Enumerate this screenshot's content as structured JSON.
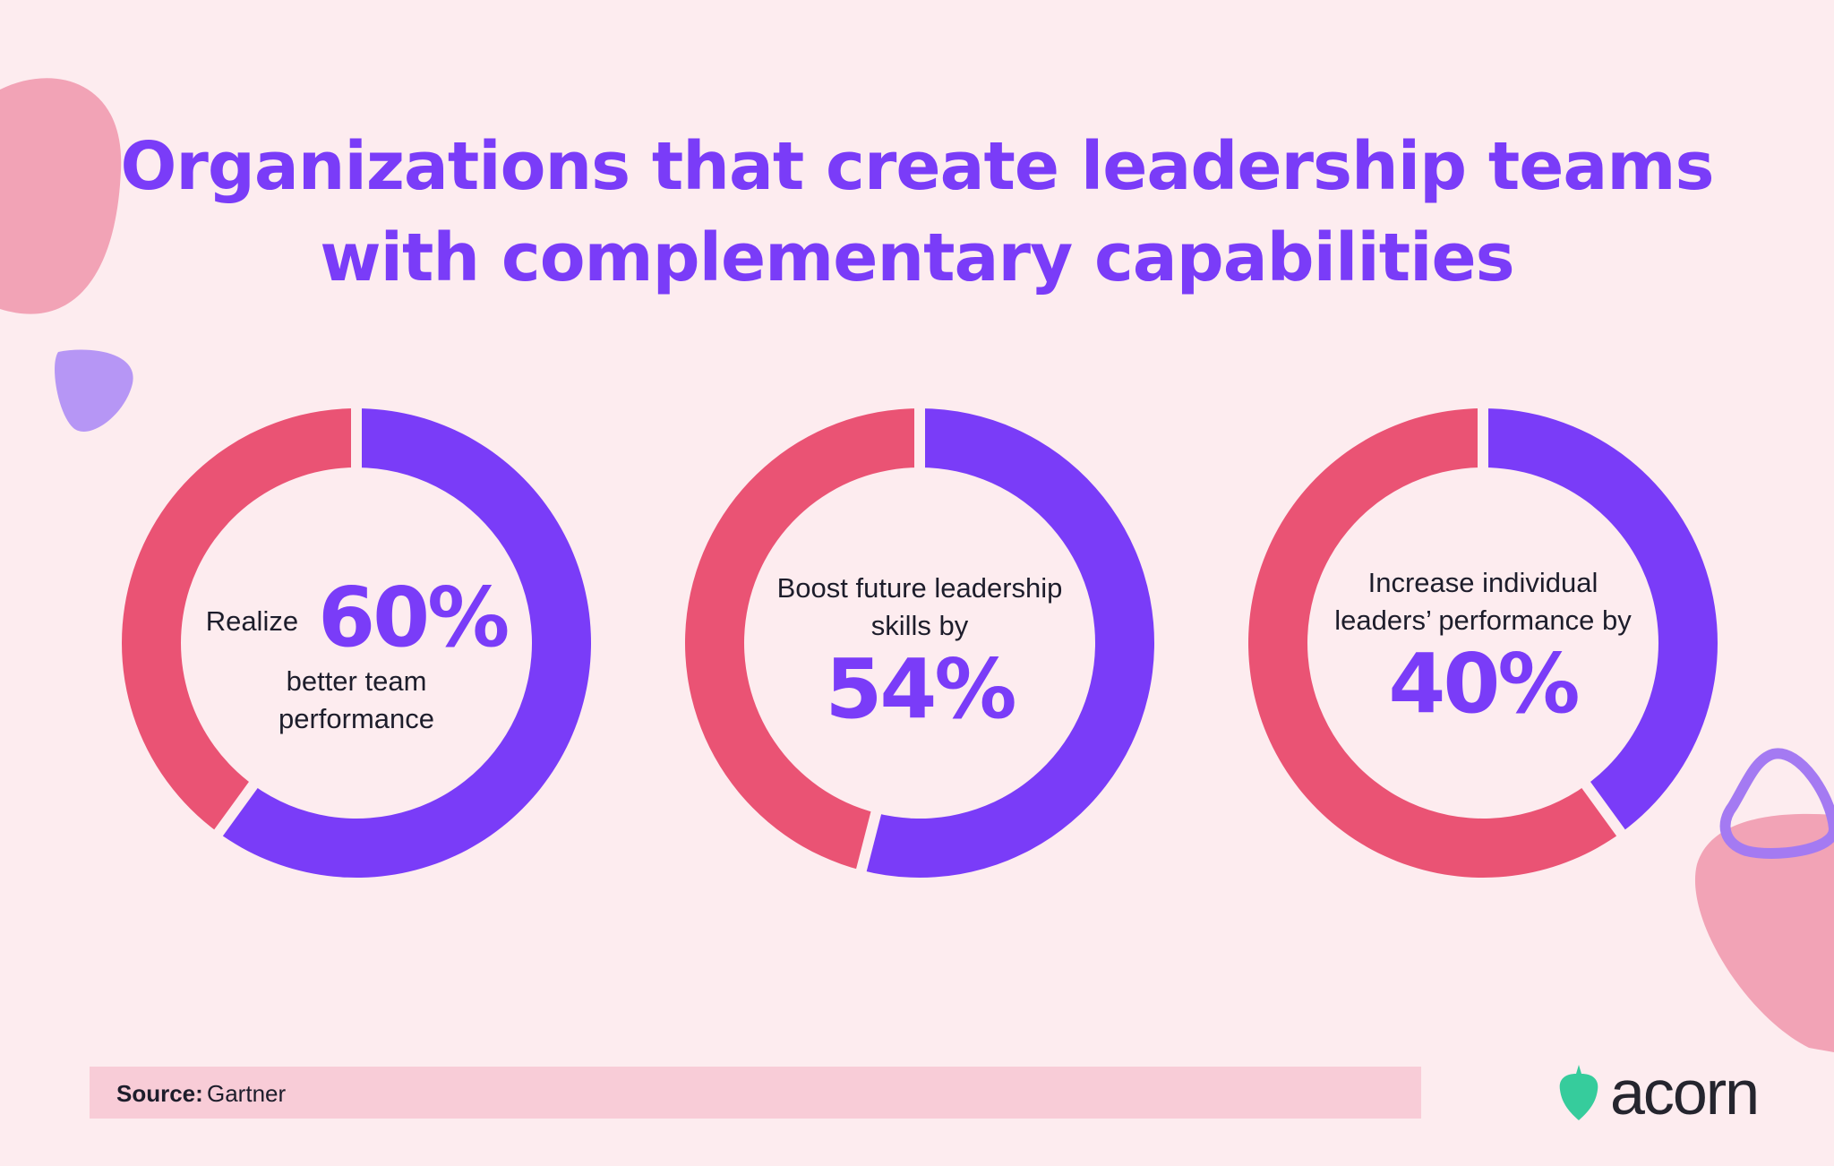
{
  "title": {
    "line1": "Organizations that create leadership teams",
    "line2": "with complementary capabilities"
  },
  "colors": {
    "background": "#fdecef",
    "accent_purple": "#7a3cf8",
    "accent_pink": "#ea5374",
    "source_bar": "#f8ccd7",
    "logo_green": "#36cc9c"
  },
  "chart_data": [
    {
      "type": "pie",
      "variant": "donut",
      "values": [
        60,
        40
      ],
      "highlight_value": 60,
      "text_before": "Realize",
      "label": "60%",
      "text_after_1": "better team",
      "text_after_2": "performance"
    },
    {
      "type": "pie",
      "variant": "donut",
      "values": [
        54,
        46
      ],
      "highlight_value": 54,
      "text_before_1": "Boost future leadership",
      "text_before_2": "skills by",
      "label": "54%"
    },
    {
      "type": "pie",
      "variant": "donut",
      "values": [
        40,
        60
      ],
      "highlight_value": 40,
      "text_before_1": "Increase individual",
      "text_before_2": "leaders’ performance by",
      "label": "40%"
    }
  ],
  "source": {
    "label": "Source:",
    "value": "Gartner"
  },
  "logo": {
    "text": "acorn",
    "icon": "acorn-icon"
  }
}
